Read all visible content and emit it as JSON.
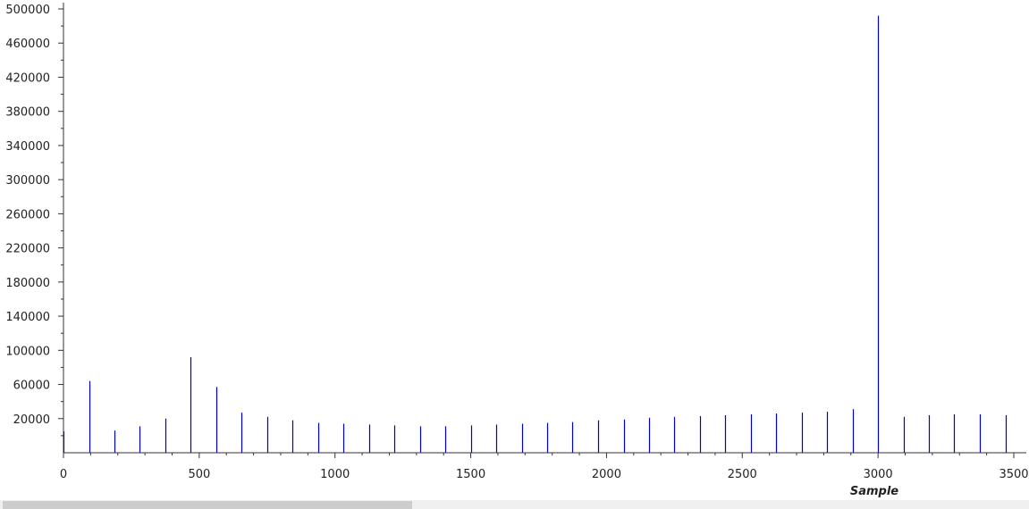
{
  "chart_data": {
    "type": "bar",
    "title": "",
    "xlabel": "Sample",
    "ylabel": "",
    "xlim": [
      0,
      3500
    ],
    "ylim": [
      -20000,
      500000
    ],
    "x_ticks": [
      0,
      500,
      1000,
      1500,
      2000,
      2500,
      3000,
      3500
    ],
    "y_ticks": [
      20000,
      60000,
      100000,
      140000,
      180000,
      220000,
      260000,
      300000,
      340000,
      380000,
      420000,
      460000,
      500000
    ],
    "grid": false,
    "legend": "none",
    "colors": {
      "bars": "#0000cc",
      "axis": "#333333"
    },
    "series": [
      {
        "x": [
          0,
          94,
          188,
          281,
          375,
          469,
          563,
          656,
          750,
          844,
          938,
          1031,
          1125,
          1219,
          1313,
          1406,
          1500,
          1594,
          1688,
          1781,
          1875,
          1969,
          2063,
          2156,
          2250,
          2344,
          2438,
          2531,
          2625,
          2719,
          2813,
          2906,
          3000,
          3094,
          3188,
          3281,
          3375,
          3469
        ],
        "values": [
          5000,
          64000,
          6000,
          11000,
          20000,
          92000,
          57000,
          27000,
          22000,
          18000,
          15000,
          14000,
          13000,
          12000,
          11000,
          11000,
          12000,
          13000,
          14000,
          15000,
          16000,
          18000,
          19000,
          21000,
          22000,
          23000,
          24000,
          25000,
          26000,
          27000,
          28000,
          31000,
          492000,
          22000,
          24000,
          25000,
          25000,
          24000
        ]
      }
    ]
  },
  "scrollbar": {
    "position": 0.0,
    "visible_fraction": 0.4
  }
}
